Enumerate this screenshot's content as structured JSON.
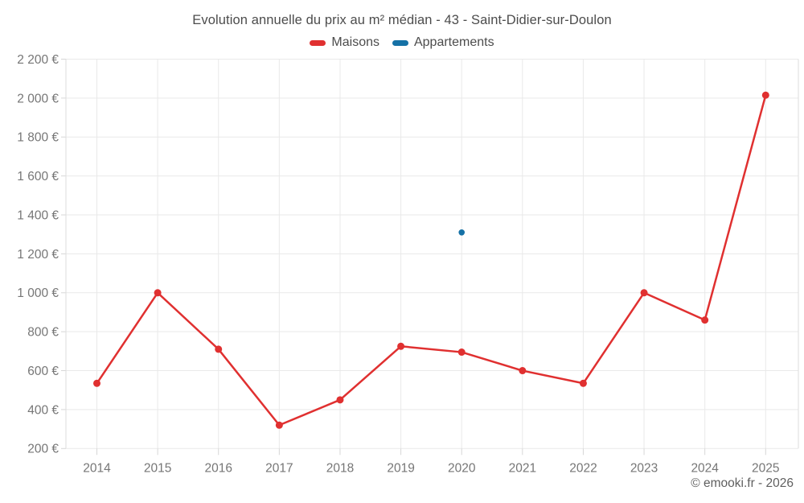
{
  "chart_data": {
    "type": "line",
    "title": "Evolution annuelle du prix au m² médian - 43 - Saint-Didier-sur-Doulon",
    "categories": [
      "2014",
      "2015",
      "2016",
      "2017",
      "2018",
      "2019",
      "2020",
      "2021",
      "2022",
      "2023",
      "2024",
      "2025"
    ],
    "series": [
      {
        "name": "Maisons",
        "color": "#e03030",
        "values": [
          535,
          1000,
          710,
          320,
          450,
          725,
          695,
          600,
          535,
          1000,
          860,
          2015
        ]
      },
      {
        "name": "Appartements",
        "color": "#1571a6",
        "values": [
          null,
          null,
          null,
          null,
          null,
          null,
          1310,
          null,
          null,
          null,
          null,
          null
        ]
      }
    ],
    "ylim": [
      200,
      2200
    ],
    "ytick_step": 200,
    "ytick_labels": [
      "200 €",
      "400 €",
      "600 €",
      "800 €",
      "1 000 €",
      "1 200 €",
      "1 400 €",
      "1 600 €",
      "1 800 €",
      "2 000 €",
      "2 200 €"
    ],
    "grid": true,
    "legend_position": "top",
    "currency": "€"
  },
  "footer": {
    "copyright": "© emooki.fr - 2026"
  }
}
